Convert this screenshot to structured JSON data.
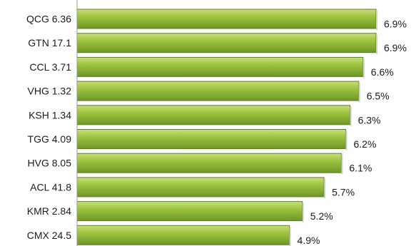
{
  "chart_data": {
    "type": "bar",
    "orientation": "horizontal",
    "categories": [
      "QCG 6.36",
      "GTN 17.1",
      "CCL 3.71",
      "VHG 1.32",
      "KSH 1.34",
      "TGG 4.09",
      "HVG 8.05",
      "ACL 41.8",
      "KMR 2.84",
      "CMX 24.5"
    ],
    "values": [
      6.9,
      6.9,
      6.6,
      6.5,
      6.3,
      6.2,
      6.1,
      5.7,
      5.2,
      4.9
    ],
    "value_labels": [
      "6.9%",
      "6.9%",
      "6.6%",
      "6.5%",
      "6.3%",
      "6.2%",
      "6.1%",
      "5.7%",
      "5.2%",
      "4.9%"
    ],
    "unit": "%",
    "xlim": [
      0,
      6.9
    ],
    "grid": false,
    "legend": "none",
    "colors": {
      "bar_light": "#c8e07a",
      "bar_mid": "#9cc23e",
      "bar_dark": "#6f9628",
      "bar_edge": "#5e7f22",
      "axis": "#9a9a9a"
    }
  }
}
